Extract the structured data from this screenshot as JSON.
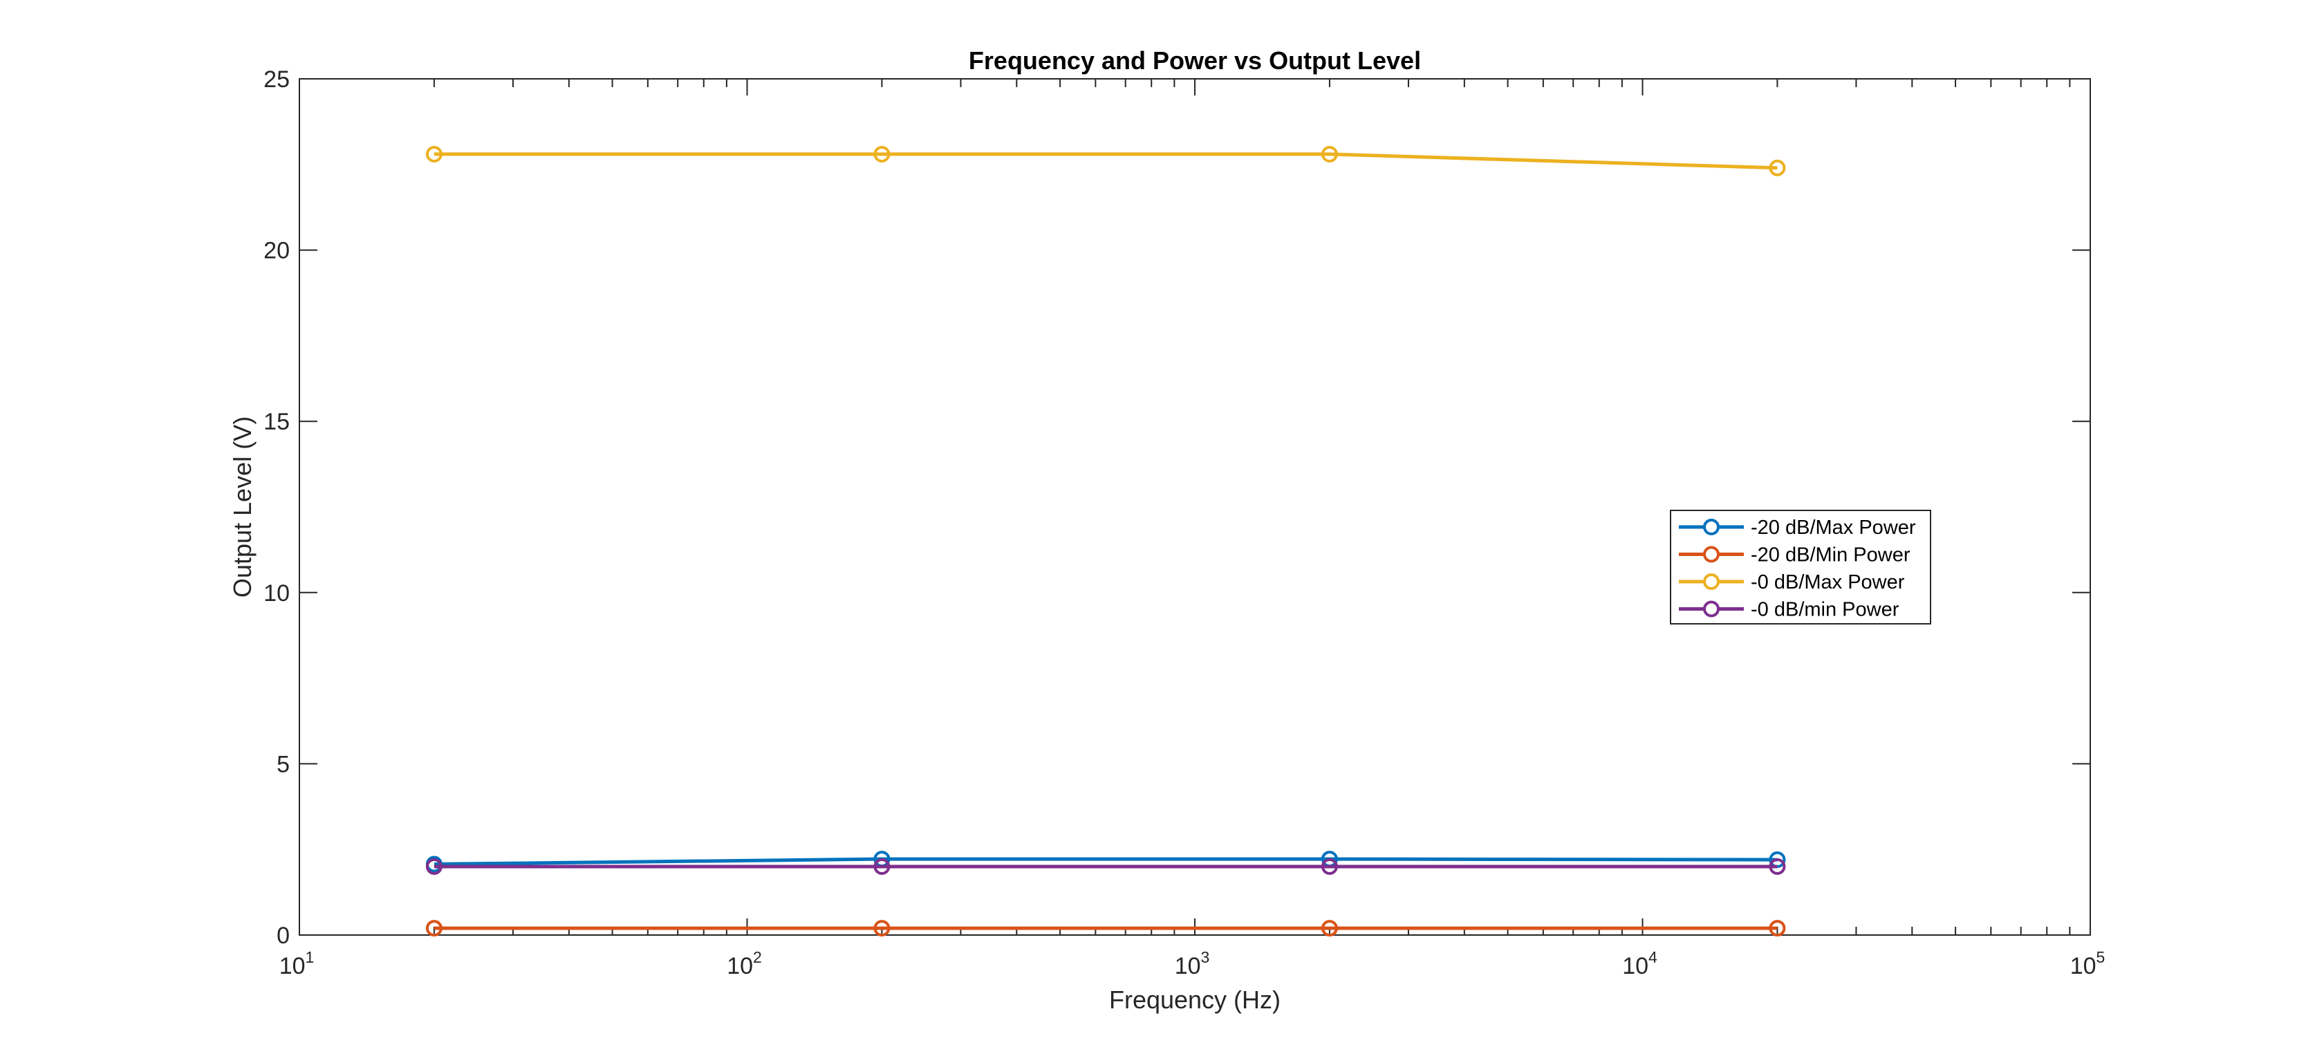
{
  "chart_data": {
    "type": "line",
    "title": "Frequency and Power vs Output Level",
    "xlabel": "Frequency (Hz)",
    "ylabel": "Output Level (V)",
    "x_scale": "log",
    "xlim": [
      10,
      100000
    ],
    "ylim": [
      0,
      25
    ],
    "x_ticks": [
      {
        "value": 10,
        "base": "10",
        "exp": "1"
      },
      {
        "value": 100,
        "base": "10",
        "exp": "2"
      },
      {
        "value": 1000,
        "base": "10",
        "exp": "3"
      },
      {
        "value": 10000,
        "base": "10",
        "exp": "4"
      },
      {
        "value": 100000,
        "base": "10",
        "exp": "5"
      }
    ],
    "y_ticks": [
      0,
      5,
      10,
      15,
      20,
      25
    ],
    "y_tick_labels": [
      "0",
      "5",
      "10",
      "15",
      "20",
      "25"
    ],
    "grid": false,
    "legend_position": "right",
    "x": [
      20,
      200,
      2000,
      20000
    ],
    "series": [
      {
        "name": "-20 dB/Max Power",
        "color": "#0072BD",
        "values": [
          2.07,
          2.22,
          2.22,
          2.2
        ]
      },
      {
        "name": "-20 dB/Min Power",
        "color": "#D95319",
        "values": [
          0.2,
          0.2,
          0.2,
          0.2
        ]
      },
      {
        "name": "-0 dB/Max Power",
        "color": "#EDB120",
        "values": [
          22.8,
          22.8,
          22.8,
          22.4
        ]
      },
      {
        "name": "-0 dB/min Power",
        "color": "#7E2F8E",
        "values": [
          2.0,
          2.0,
          2.0,
          2.0
        ]
      }
    ]
  }
}
